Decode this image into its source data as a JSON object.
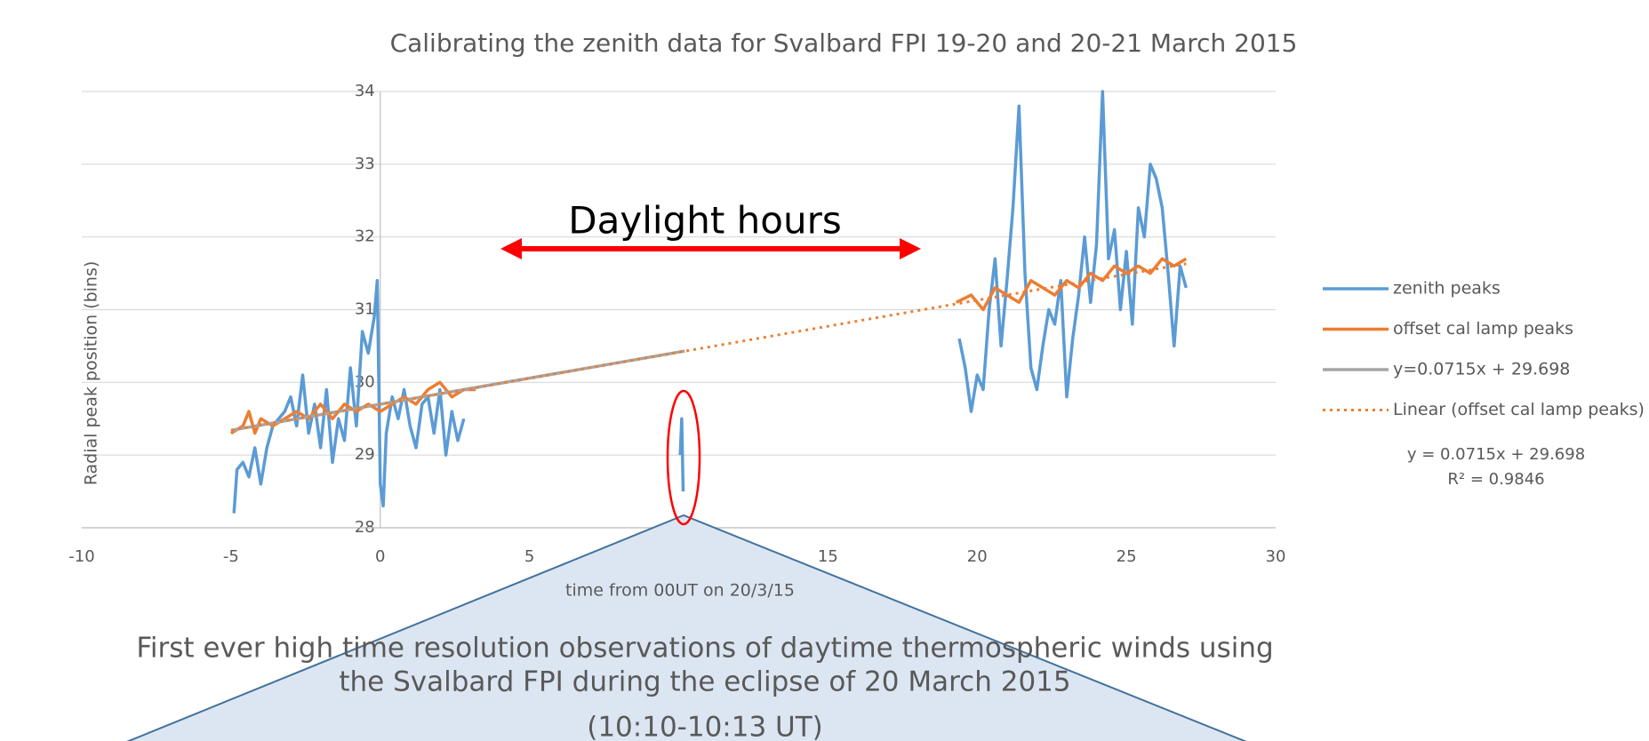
{
  "chart_data": {
    "type": "line",
    "title": "Calibrating the zenith data for Svalbard FPI 19-20 and 20-21 March 2015",
    "xlabel": "time from 00UT on 20/3/15",
    "ylabel": "Radial peak position (bins)",
    "xlim": [
      -10,
      30
    ],
    "xticks": [
      -10,
      -5,
      0,
      5,
      10,
      15,
      20,
      25,
      30
    ],
    "ylim": [
      28,
      34
    ],
    "yticks": [
      28,
      29,
      30,
      31,
      32,
      33,
      34
    ],
    "grid": true,
    "legend": "right",
    "series": [
      {
        "name": "zenith peaks",
        "color": "#5b9bd5",
        "width": 3.5,
        "x": [
          -4.9,
          -4.8,
          -4.6,
          -4.4,
          -4.2,
          -4.0,
          -3.8,
          -3.6,
          -3.4,
          -3.2,
          -3.0,
          -2.8,
          -2.6,
          -2.4,
          -2.2,
          -2.0,
          -1.8,
          -1.6,
          -1.4,
          -1.2,
          -1.0,
          -0.8,
          -0.6,
          -0.4,
          -0.2,
          -0.1,
          0.0,
          0.1,
          0.2,
          0.4,
          0.6,
          0.8,
          1.0,
          1.2,
          1.4,
          1.6,
          1.8,
          2.0,
          2.2,
          2.4,
          2.6,
          2.8,
          6.0,
          10.05,
          10.1,
          10.15,
          15.0,
          19.4,
          19.6,
          19.8,
          20.0,
          20.2,
          20.4,
          20.6,
          20.8,
          21.0,
          21.2,
          21.4,
          21.6,
          21.8,
          22.0,
          22.2,
          22.4,
          22.6,
          22.8,
          23.0,
          23.2,
          23.4,
          23.6,
          23.8,
          24.0,
          24.2,
          24.4,
          24.6,
          24.8,
          25.0,
          25.2,
          25.4,
          25.6,
          25.8,
          26.0,
          26.2,
          26.4,
          26.6,
          26.8,
          27.0
        ],
        "values": [
          28.2,
          28.8,
          28.9,
          28.7,
          29.1,
          28.6,
          29.1,
          29.4,
          29.5,
          29.6,
          29.8,
          29.4,
          30.1,
          29.3,
          29.7,
          29.1,
          29.9,
          28.9,
          29.5,
          29.2,
          30.2,
          29.4,
          30.7,
          30.4,
          30.9,
          31.4,
          28.6,
          28.3,
          29.3,
          29.8,
          29.5,
          29.9,
          29.4,
          29.1,
          29.7,
          29.8,
          29.3,
          29.9,
          29.0,
          29.6,
          29.2,
          29.5,
          null,
          29.0,
          29.5,
          28.5,
          null,
          30.6,
          30.2,
          29.6,
          30.1,
          29.9,
          31.0,
          31.7,
          30.5,
          31.4,
          32.4,
          33.8,
          31.5,
          30.2,
          29.9,
          30.5,
          31.0,
          30.8,
          31.4,
          29.8,
          30.6,
          31.2,
          32.0,
          31.1,
          31.9,
          34.0,
          31.7,
          32.1,
          31.0,
          31.8,
          30.8,
          32.4,
          32.0,
          33.0,
          32.8,
          32.4,
          31.5,
          30.5,
          31.6,
          31.3
        ]
      },
      {
        "name": "offset cal lamp peaks",
        "color": "#ed7d31",
        "width": 3.5,
        "x": [
          -5.0,
          -4.6,
          -4.4,
          -4.2,
          -4.0,
          -3.6,
          -3.2,
          -2.8,
          -2.4,
          -2.0,
          -1.6,
          -1.2,
          -0.8,
          -0.4,
          0.0,
          0.4,
          0.8,
          1.2,
          1.6,
          2.0,
          2.4,
          2.8,
          3.2,
          10.0,
          19.3,
          19.8,
          20.2,
          20.6,
          21.0,
          21.4,
          21.8,
          22.2,
          22.6,
          23.0,
          23.4,
          23.8,
          24.2,
          24.6,
          25.0,
          25.4,
          25.8,
          26.2,
          26.6,
          27.0
        ],
        "values": [
          29.3,
          29.4,
          29.6,
          29.3,
          29.5,
          29.4,
          29.5,
          29.6,
          29.5,
          29.7,
          29.5,
          29.7,
          29.6,
          29.7,
          29.6,
          29.7,
          29.8,
          29.7,
          29.9,
          30.0,
          29.8,
          29.9,
          29.9,
          null,
          31.1,
          31.2,
          31.0,
          31.3,
          31.2,
          31.1,
          31.4,
          31.3,
          31.2,
          31.4,
          31.3,
          31.5,
          31.4,
          31.6,
          31.5,
          31.6,
          31.5,
          31.7,
          31.6,
          31.7
        ]
      },
      {
        "name": "y=0.0715x + 29.698",
        "color": "#a5a5a5",
        "width": 3.5,
        "x": [
          -5.0,
          10.2
        ],
        "values": [
          29.34,
          30.43
        ]
      },
      {
        "name": "Linear (offset cal lamp peaks)",
        "color": "#ed7d31",
        "width": 3,
        "dash": true,
        "x": [
          -5.0,
          27.0
        ],
        "values": [
          29.34,
          31.63
        ]
      }
    ],
    "annotations": {
      "daylight": "Daylight hours",
      "equation": "y = 0.0715x + 29.698",
      "r_squared": "R² = 0.9846",
      "callout": [
        "First ever high time resolution observations of daytime thermospheric winds using",
        "the Svalbard FPI during the eclipse of 20 March 2015",
        "(10:10-10:13 UT)"
      ]
    }
  }
}
